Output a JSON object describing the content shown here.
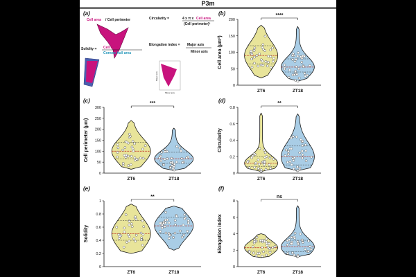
{
  "figure": {
    "title": "P3m",
    "colors": {
      "zt6": "#e8e49a",
      "zt18": "#a9cde6",
      "outline": "#1a1a1a",
      "magenta": "#c8137d",
      "cyan": "#1f94b8"
    }
  },
  "panel_a": {
    "label": "(a)",
    "cell_area": "Cell area",
    "cell_perimeter": "/ Cell perimeter",
    "circularity_prefix": "Circularity =",
    "circularity_formula": "4 x π x",
    "circularity_den": "(Cell perimeter)²",
    "solidity_prefix": "Solidity =",
    "convex_hull": "Convex hull area",
    "elongation_prefix": "Elongation index =",
    "major_axis": "Major axis",
    "minor_axis": "Minor axis"
  },
  "chart_data": [
    {
      "id": "b",
      "label": "(b)",
      "type": "violin",
      "ylabel": "Cell area (µm²)",
      "ylim": [
        0,
        200
      ],
      "yticks": [
        0,
        50,
        100,
        150,
        200
      ],
      "categories": [
        "ZT6",
        "ZT18"
      ],
      "significance": "****",
      "series": [
        {
          "name": "ZT6",
          "median": 90,
          "q1": 65,
          "q3": 120,
          "min": 22,
          "max": 182
        },
        {
          "name": "ZT18",
          "median": 55,
          "q1": 40,
          "q3": 80,
          "min": 12,
          "max": 178
        }
      ]
    },
    {
      "id": "c",
      "label": "(c)",
      "type": "violin",
      "ylabel": "Cell perimeter (µm)",
      "ylim": [
        0,
        300
      ],
      "yticks": [
        0,
        50,
        100,
        150,
        200,
        250,
        300
      ],
      "categories": [
        "ZT6",
        "ZT18"
      ],
      "significance": "***",
      "series": [
        {
          "name": "ZT6",
          "median": 100,
          "q1": 65,
          "q3": 140,
          "min": 18,
          "max": 240
        },
        {
          "name": "ZT18",
          "median": 65,
          "q1": 45,
          "q3": 95,
          "min": 12,
          "max": 205
        }
      ]
    },
    {
      "id": "d",
      "label": "(d)",
      "type": "violin",
      "ylabel": "Circularity",
      "ylim": [
        0,
        0.8
      ],
      "yticks": [
        0.0,
        0.2,
        0.4,
        0.6,
        0.8
      ],
      "categories": [
        "ZT6",
        "ZT18"
      ],
      "significance": "**",
      "series": [
        {
          "name": "ZT6",
          "median": 0.12,
          "q1": 0.08,
          "q3": 0.2,
          "min": 0.02,
          "max": 0.73
        },
        {
          "name": "ZT18",
          "median": 0.2,
          "q1": 0.1,
          "q3": 0.33,
          "min": 0.03,
          "max": 0.72
        }
      ]
    },
    {
      "id": "e",
      "label": "(e)",
      "type": "violin",
      "ylabel": "Solidity",
      "ylim": [
        0,
        1.0
      ],
      "yticks": [
        0.0,
        0.2,
        0.4,
        0.6,
        0.8,
        1.0
      ],
      "categories": [
        "ZT6",
        "ZT18"
      ],
      "significance": "**",
      "series": [
        {
          "name": "ZT6",
          "median": 0.5,
          "q1": 0.4,
          "q3": 0.7,
          "min": 0.2,
          "max": 0.95
        },
        {
          "name": "ZT18",
          "median": 0.62,
          "q1": 0.5,
          "q3": 0.75,
          "min": 0.25,
          "max": 0.92
        }
      ]
    },
    {
      "id": "f",
      "label": "(f)",
      "type": "violin",
      "ylabel": "Elongation index",
      "ylim": [
        0,
        8
      ],
      "yticks": [
        0,
        2,
        4,
        6,
        8
      ],
      "categories": [
        "ZT6",
        "ZT18"
      ],
      "significance": "ns",
      "series": [
        {
          "name": "ZT6",
          "median": 2.3,
          "q1": 1.9,
          "q3": 3.0,
          "min": 1.1,
          "max": 4.0
        },
        {
          "name": "ZT18",
          "median": 2.4,
          "q1": 1.8,
          "q3": 3.2,
          "min": 1.2,
          "max": 7.4
        }
      ]
    }
  ]
}
